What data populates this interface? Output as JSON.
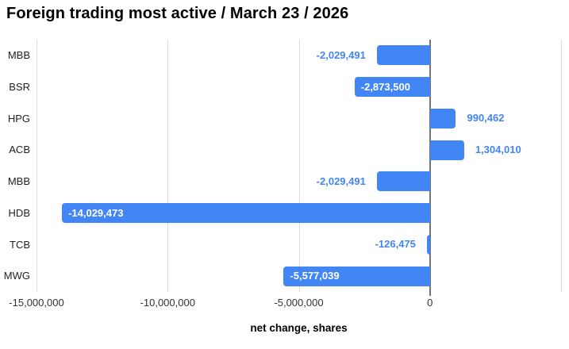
{
  "title": "Foreign trading most active / March 23 / 2026",
  "chart_data": {
    "type": "bar",
    "orientation": "horizontal",
    "title": "Foreign trading most active / March 23 / 2026",
    "categories": [
      "MBB",
      "BSR",
      "HPG",
      "ACB",
      "MBB",
      "HDB",
      "TCB",
      "MWG"
    ],
    "values": [
      -2029491,
      -2873500,
      990462,
      1304010,
      -2029491,
      -14029473,
      -126475,
      -5577039
    ],
    "value_labels": [
      "-2,029,491",
      "-2,873,500",
      "990,462",
      "1,304,010",
      "-2,029,491",
      "-14,029,473",
      "-126,475",
      "-5,577,039"
    ],
    "xlabel": "net change, shares",
    "ylabel": "",
    "xlim": [
      -15000000,
      5000000
    ],
    "x_ticks": [
      -15000000,
      -10000000,
      -5000000,
      0
    ],
    "x_tick_labels": [
      "-15,000,000",
      "-10,000,000",
      "-5,000,000",
      "0"
    ],
    "x_gridlines": [
      -15000000,
      -10000000,
      -5000000,
      0,
      5000000
    ],
    "grid": true,
    "legend": "none",
    "colors": {
      "bar": "#4285f4",
      "outside_label": "#4285f4",
      "inside_label": "#ffffff",
      "zero_line": "#757575",
      "gridline": "#dcdcdc",
      "category_label": "#222222",
      "tick_label": "#333333",
      "title": "#000000",
      "axis_label": "#000000",
      "background": "#ffffff"
    }
  }
}
